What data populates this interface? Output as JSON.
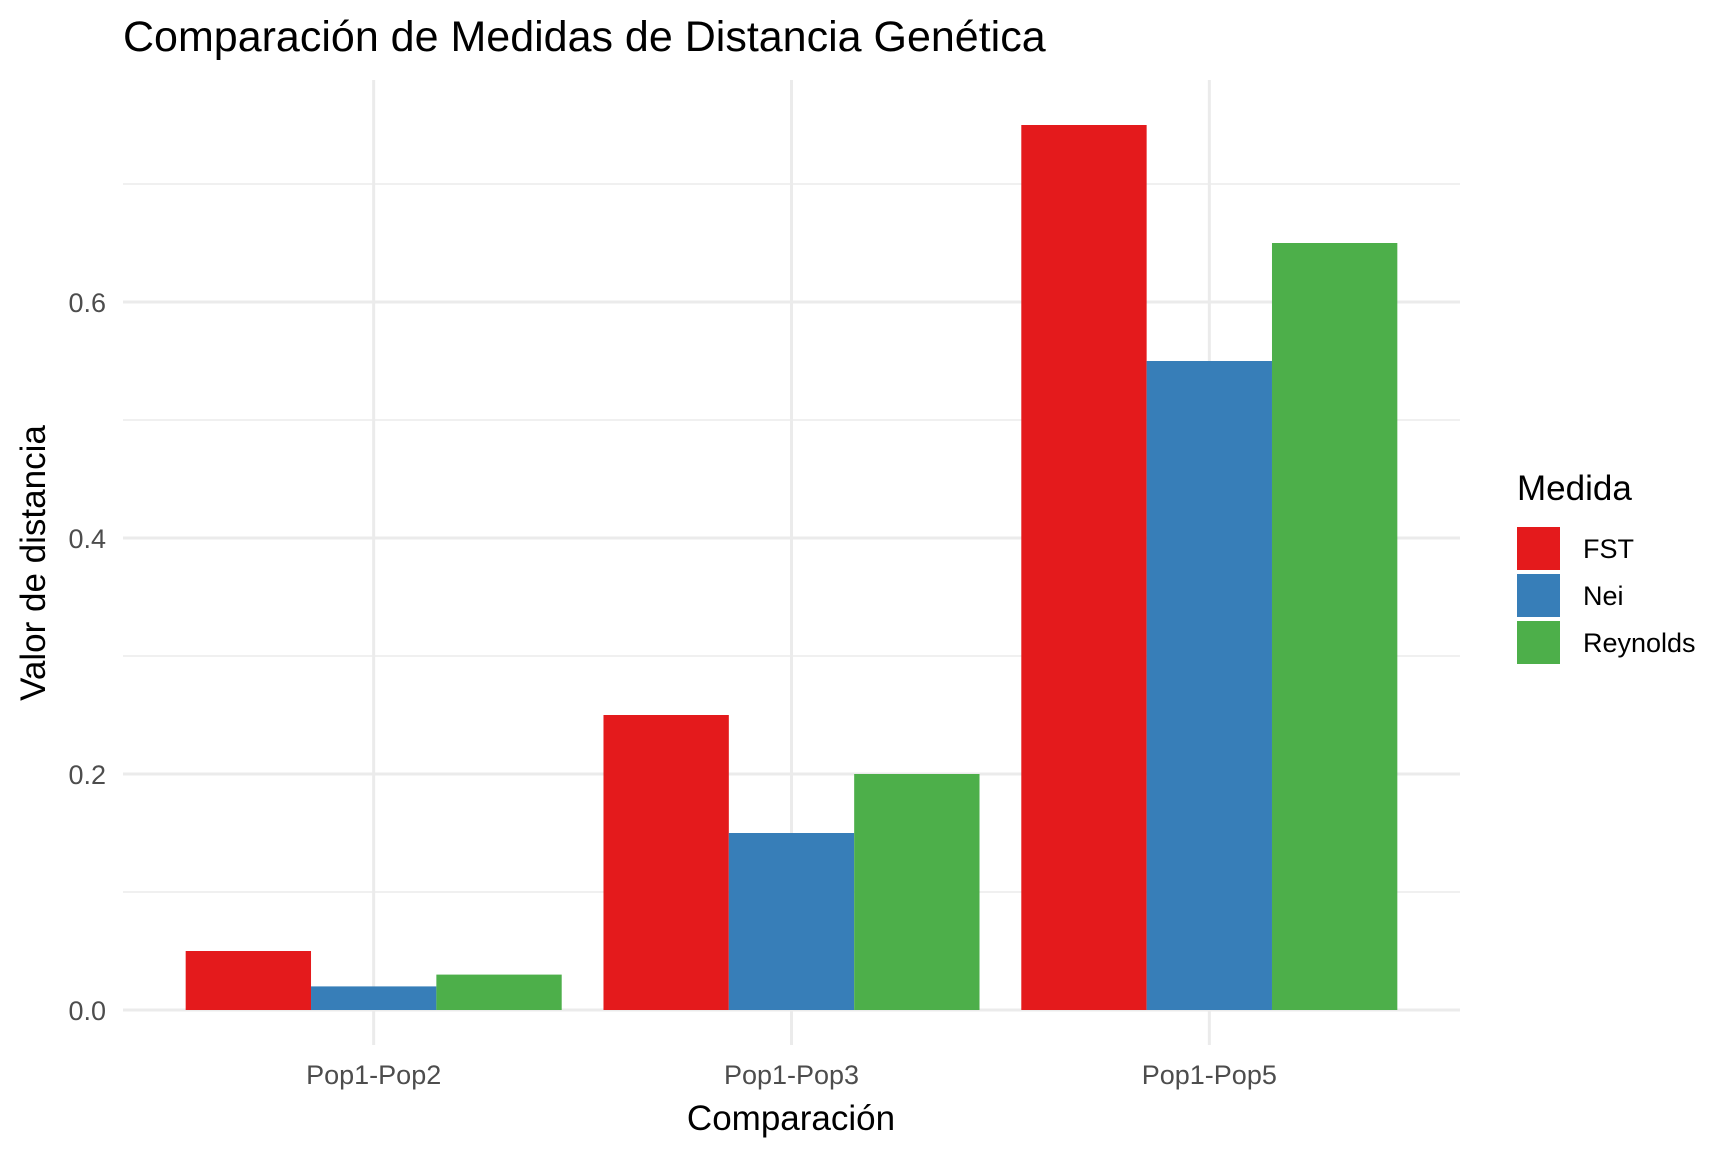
{
  "chart_data": {
    "type": "bar",
    "title": "Comparación de Medidas de Distancia Genética",
    "xlabel": "Comparación",
    "ylabel": "Valor de distancia",
    "categories": [
      "Pop1-Pop2",
      "Pop1-Pop3",
      "Pop1-Pop5"
    ],
    "series": [
      {
        "name": "FST",
        "color": "#E41A1C",
        "values": [
          0.05,
          0.25,
          0.75
        ]
      },
      {
        "name": "Nei",
        "color": "#377EB8",
        "values": [
          0.02,
          0.15,
          0.55
        ]
      },
      {
        "name": "Reynolds",
        "color": "#4DAF4A",
        "values": [
          0.03,
          0.2,
          0.65
        ]
      }
    ],
    "ylim": [
      0,
      0.785
    ],
    "yticks": [
      0.0,
      0.2,
      0.4,
      0.6
    ],
    "ytick_labels": [
      "0.0",
      "0.2",
      "0.4",
      "0.6"
    ],
    "grid": true,
    "legend": {
      "title": "Medida",
      "position": "right"
    }
  }
}
